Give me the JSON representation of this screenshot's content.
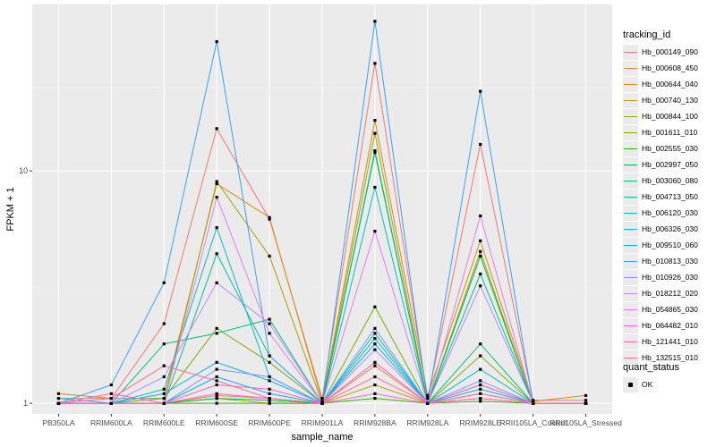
{
  "chart_data": {
    "type": "line",
    "xlabel": "sample_name",
    "ylabel": "FPKM + 1",
    "scale_y": "log10",
    "ylim": [
      0.9,
      52
    ],
    "y_ticks": [
      1,
      10
    ],
    "y_tick_labels": [
      "1",
      "10"
    ],
    "grid": true,
    "legend_position": "right",
    "categories": [
      "PB350LA",
      "RRIM600LA",
      "RRIM600LE",
      "RRIM600SE",
      "RRIM600PE",
      "RRIM901LA",
      "RRIM928BA",
      "RRIM928LA",
      "RRIM928LE",
      "RRII105LA_Control",
      "RRII105LA_Stressed"
    ],
    "color_legend_title": "tracking_id",
    "shape_legend_title": "quant_status",
    "shape_legend_items": [
      "OK"
    ],
    "series": [
      {
        "name": "Hb_000149_090",
        "color": "#f8766d",
        "values": [
          1.05,
          1.05,
          2.2,
          15.2,
          6.2,
          1.05,
          29.0,
          1.05,
          13.0,
          1.03,
          1.03
        ]
      },
      {
        "name": "Hb_000608_450",
        "color": "#f07f3b",
        "values": [
          1.0,
          1.0,
          1.0,
          1.08,
          1.05,
          1.0,
          1.45,
          1.0,
          1.1,
          1.0,
          1.0
        ]
      },
      {
        "name": "Hb_000644_040",
        "color": "#e08b00",
        "values": [
          1.1,
          1.05,
          1.05,
          8.8,
          6.3,
          1.02,
          16.5,
          1.08,
          5.0,
          1.02,
          1.08
        ]
      },
      {
        "name": "Hb_000740_130",
        "color": "#c99800",
        "values": [
          1.0,
          1.0,
          1.0,
          1.05,
          1.0,
          1.0,
          1.2,
          1.0,
          1.05,
          1.0,
          1.0
        ]
      },
      {
        "name": "Hb_000844_100",
        "color": "#a3a500",
        "values": [
          1.0,
          1.0,
          1.0,
          9.0,
          4.3,
          1.0,
          14.5,
          1.0,
          4.5,
          1.0,
          1.0
        ]
      },
      {
        "name": "Hb_001611_010",
        "color": "#7cae00",
        "values": [
          1.0,
          1.0,
          1.05,
          2.1,
          1.5,
          1.0,
          2.6,
          1.0,
          1.6,
          1.0,
          1.0
        ]
      },
      {
        "name": "Hb_002555_030",
        "color": "#39b600",
        "values": [
          1.0,
          1.0,
          1.0,
          1.0,
          1.0,
          1.0,
          1.05,
          1.0,
          1.02,
          1.0,
          1.0
        ]
      },
      {
        "name": "Hb_002997_050",
        "color": "#00bb4e",
        "values": [
          1.0,
          1.0,
          1.0,
          1.05,
          1.03,
          1.0,
          12.0,
          1.0,
          4.3,
          1.0,
          1.0
        ]
      },
      {
        "name": "Hb_003060_080",
        "color": "#00bf7d",
        "values": [
          1.0,
          1.0,
          1.8,
          2.0,
          2.3,
          1.0,
          12.2,
          1.0,
          1.8,
          1.0,
          1.0
        ]
      },
      {
        "name": "Hb_004713_050",
        "color": "#00c1a3",
        "values": [
          1.0,
          1.0,
          1.0,
          4.4,
          1.6,
          1.0,
          2.0,
          1.0,
          3.6,
          1.0,
          1.0
        ]
      },
      {
        "name": "Hb_006120_030",
        "color": "#00bfc4",
        "values": [
          1.05,
          1.0,
          1.15,
          5.7,
          1.3,
          1.0,
          8.5,
          1.0,
          1.4,
          1.0,
          1.0
        ]
      },
      {
        "name": "Hb_006326_030",
        "color": "#00b8e7",
        "values": [
          1.0,
          1.0,
          1.1,
          1.5,
          1.25,
          1.0,
          1.9,
          1.0,
          1.2,
          1.0,
          1.0
        ]
      },
      {
        "name": "Hb_009510_060",
        "color": "#00a9ff",
        "values": [
          1.0,
          1.0,
          1.0,
          1.3,
          1.1,
          1.0,
          1.8,
          1.0,
          1.15,
          1.0,
          1.0
        ]
      },
      {
        "name": "Hb_010813_030",
        "color": "#35a2ff",
        "values": [
          1.0,
          1.2,
          3.3,
          36.0,
          1.6,
          1.0,
          44.0,
          1.0,
          22.0,
          1.0,
          1.0
        ]
      },
      {
        "name": "Hb_010926_030",
        "color": "#8494ff",
        "values": [
          1.0,
          1.0,
          1.0,
          1.4,
          1.3,
          1.0,
          2.1,
          1.0,
          1.25,
          1.0,
          1.0
        ]
      },
      {
        "name": "Hb_018212_020",
        "color": "#bb88ff",
        "values": [
          1.0,
          1.0,
          1.3,
          3.3,
          2.2,
          1.0,
          1.7,
          1.0,
          3.2,
          1.0,
          1.0
        ]
      },
      {
        "name": "Hb_054865_030",
        "color": "#e27ff0",
        "values": [
          1.0,
          1.0,
          1.0,
          7.7,
          2.0,
          1.0,
          5.5,
          1.0,
          6.4,
          1.0,
          1.0
        ]
      },
      {
        "name": "Hb_064482_010",
        "color": "#f966d4",
        "values": [
          1.0,
          1.0,
          1.0,
          1.1,
          1.05,
          1.0,
          1.1,
          1.0,
          1.05,
          1.0,
          1.0
        ]
      },
      {
        "name": "Hb_121441_010",
        "color": "#ff62bc",
        "values": [
          1.0,
          1.1,
          1.0,
          1.2,
          1.15,
          1.0,
          1.5,
          1.0,
          1.2,
          1.0,
          1.0
        ]
      },
      {
        "name": "Hb_132515_010",
        "color": "#ff6c91",
        "values": [
          1.0,
          1.05,
          1.45,
          1.25,
          1.05,
          1.0,
          1.3,
          1.0,
          1.1,
          1.0,
          1.0
        ]
      }
    ]
  }
}
